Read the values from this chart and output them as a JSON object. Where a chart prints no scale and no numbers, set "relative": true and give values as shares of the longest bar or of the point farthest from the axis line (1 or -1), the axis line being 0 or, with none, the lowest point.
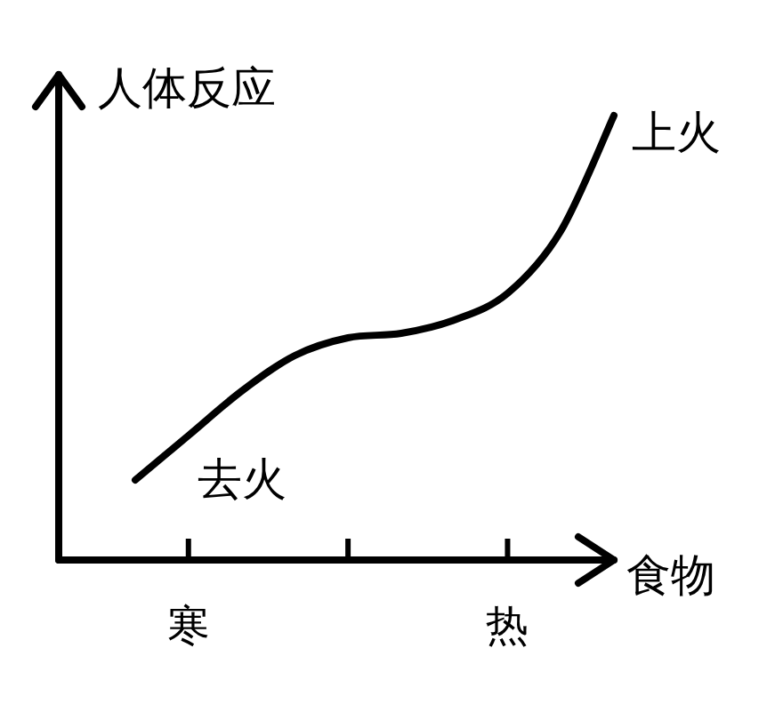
{
  "chart_data": {
    "type": "line",
    "relative": true,
    "ylabel": "人体反应",
    "xlabel": "食物",
    "categories": [
      null,
      "寒",
      null,
      null,
      null,
      null,
      null,
      "热",
      null,
      null
    ],
    "series": [
      {
        "color": "#000000",
        "values": [
          0.18,
          0.28,
          0.38,
          0.46,
          0.5,
          0.51,
          0.54,
          0.6,
          0.74,
          1.0
        ]
      }
    ],
    "annotations": [
      "上火",
      "去火"
    ],
    "marker": "none",
    "line_style": "solid"
  }
}
